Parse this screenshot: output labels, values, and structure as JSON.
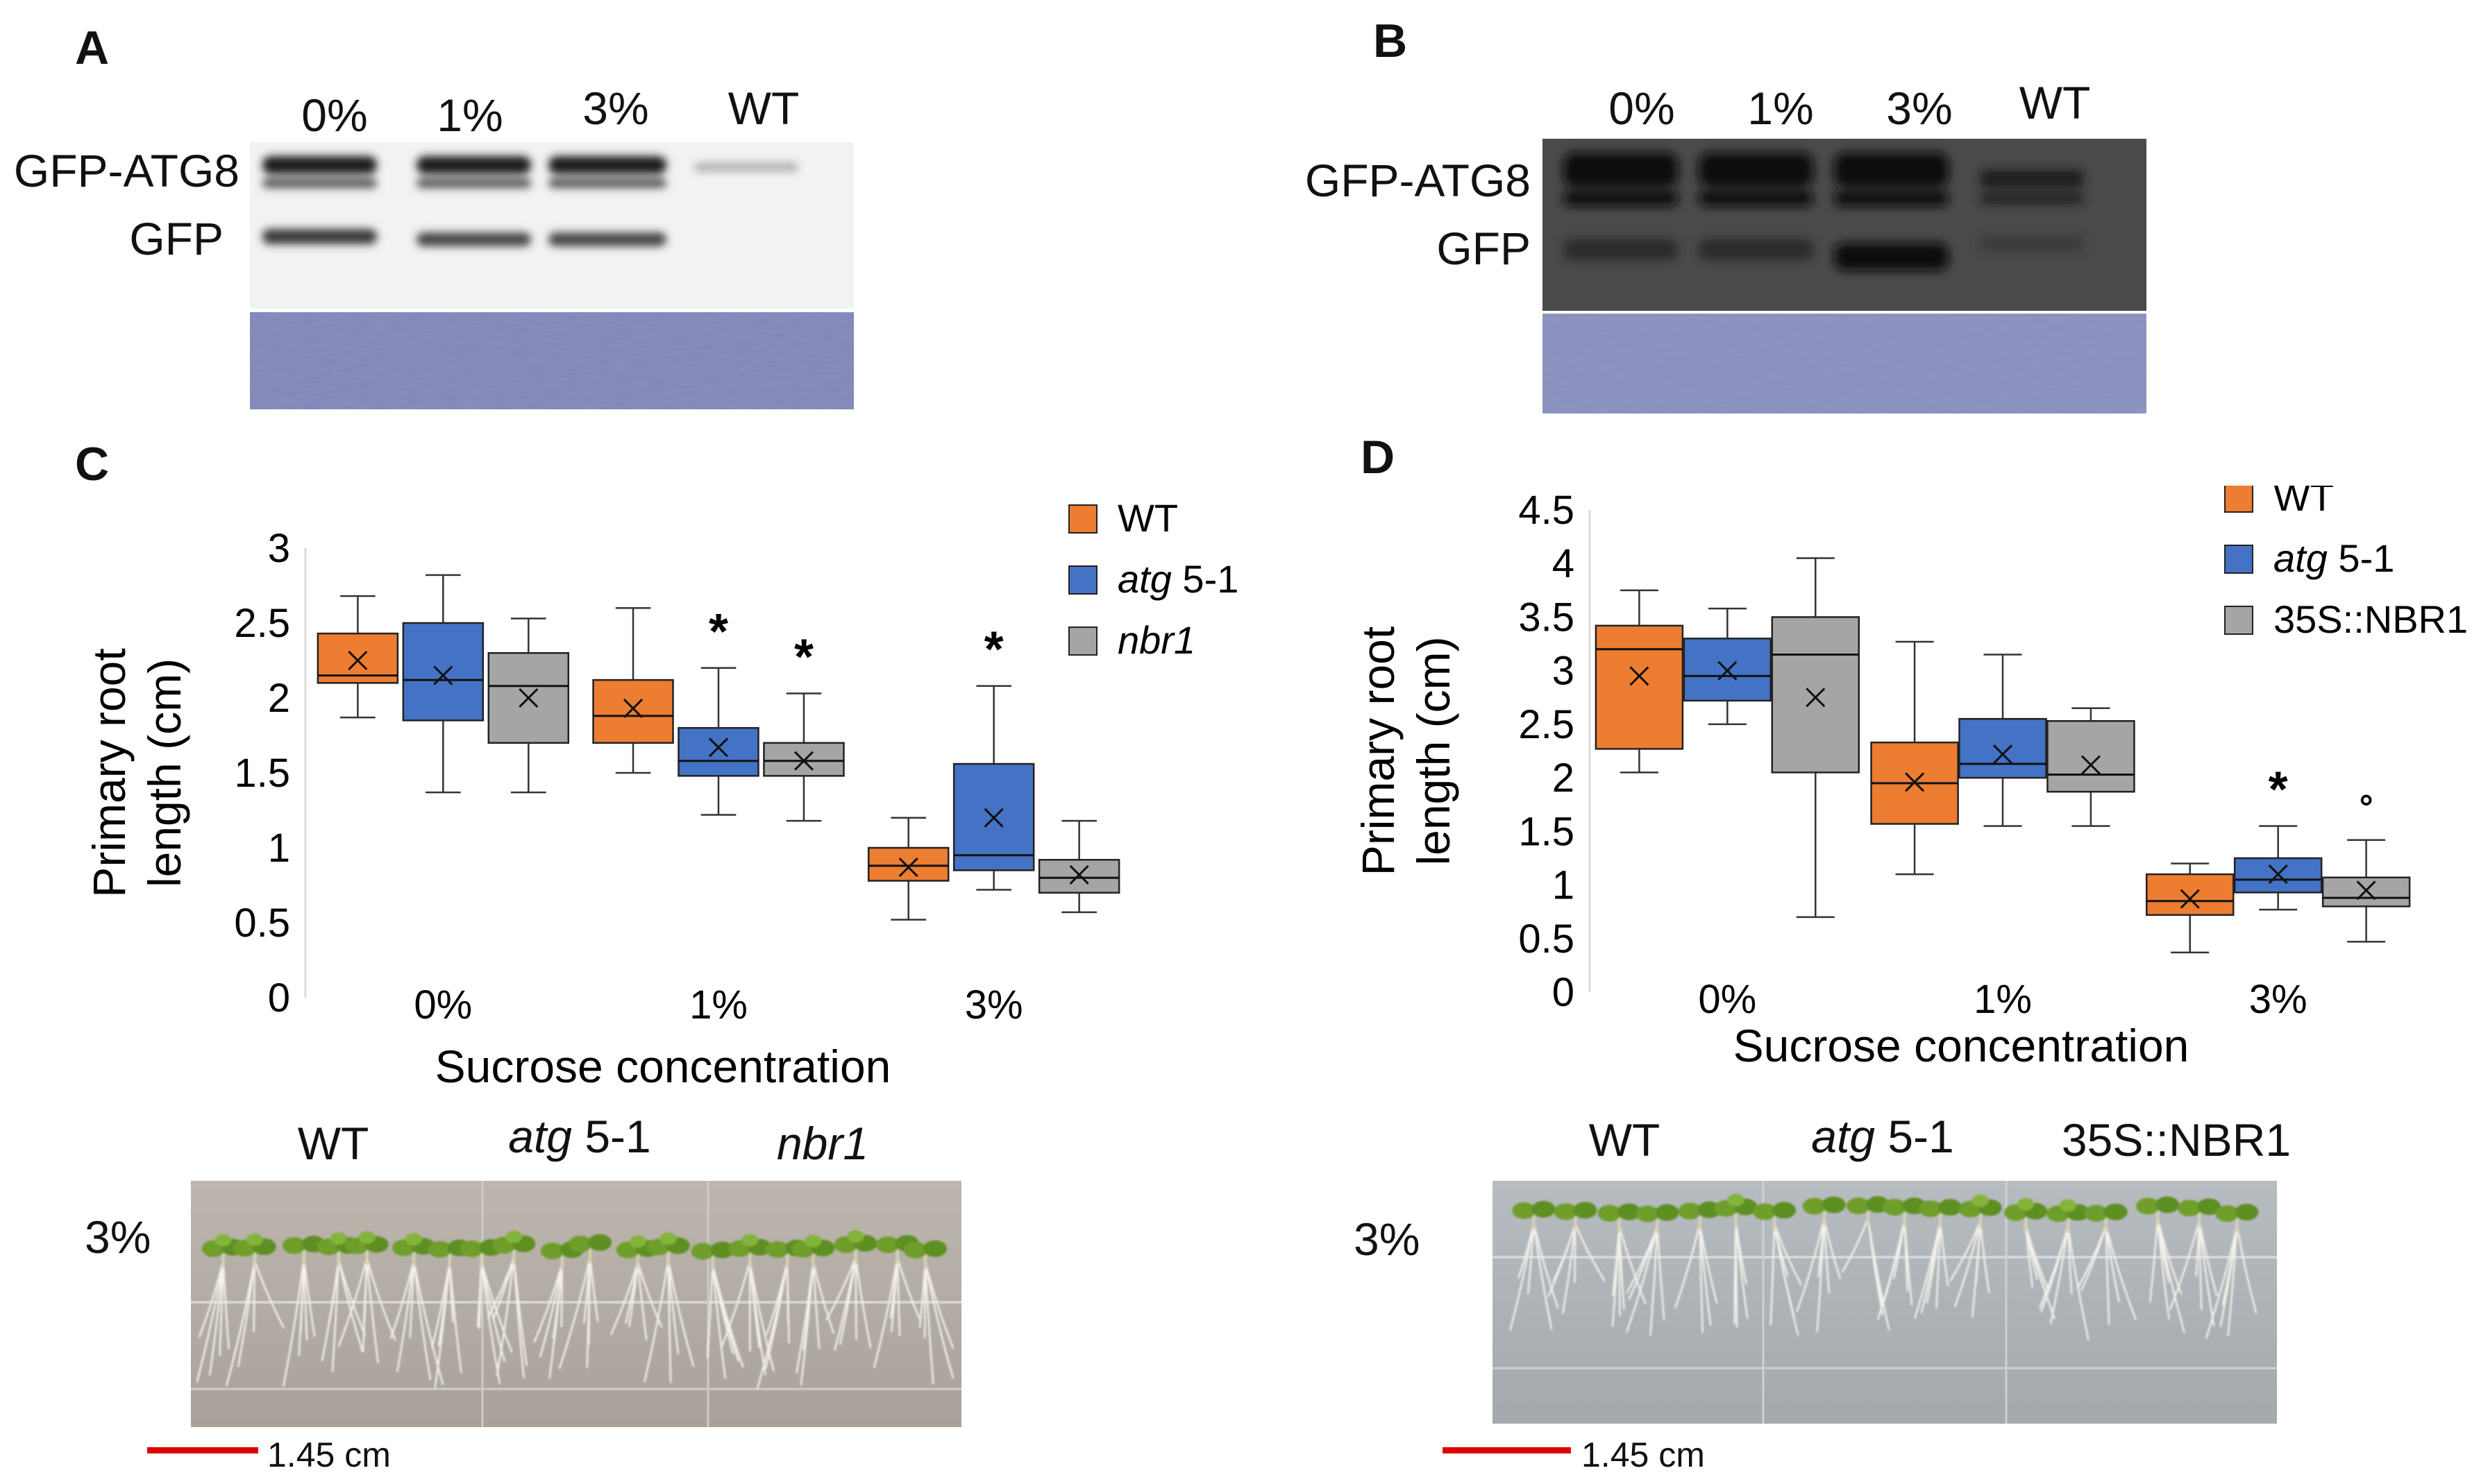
{
  "colors": {
    "wt": "#ED7D31",
    "atg": "#4472C4",
    "gray": "#A5A5A5",
    "coomassie": "#7f86b8",
    "scalebar": "#e00000"
  },
  "panels": {
    "A": {
      "label": "A",
      "lanes": [
        "0%",
        "1%",
        "3%",
        "WT"
      ],
      "band_labels": [
        "GFP-ATG8",
        "GFP"
      ]
    },
    "B": {
      "label": "B",
      "lanes": [
        "0%",
        "1%",
        "3%",
        "WT"
      ],
      "band_labels": [
        "GFP-ATG8",
        "GFP"
      ]
    },
    "C": {
      "label": "C",
      "photo_label": "3%",
      "photo_genotypes": [
        "WT",
        "atg 5-1",
        "nbr1"
      ],
      "scalebar": "1.45 cm"
    },
    "D": {
      "label": "D",
      "photo_label": "3%",
      "photo_genotypes": [
        "WT",
        "atg 5-1",
        "35S::NBR1"
      ],
      "scalebar": "1.45 cm"
    }
  },
  "chart_data": [
    {
      "type": "box",
      "panel": "C",
      "title": "",
      "xlabel": "Sucrose concentration",
      "ylabel": "Primary root length (cm)",
      "ylim": [
        0,
        3
      ],
      "yticks": [
        "0",
        "0.5",
        "1",
        "1.5",
        "2",
        "2.5",
        "3"
      ],
      "categories": [
        "0%",
        "1%",
        "3%"
      ],
      "legend": [
        "WT",
        "atg 5-1",
        "nbr1"
      ],
      "series": [
        {
          "name": "WT",
          "color": "#ED7D31",
          "boxes": [
            {
              "min": 1.87,
              "q1": 2.1,
              "median": 2.15,
              "q3": 2.43,
              "max": 2.68,
              "mean": 2.25,
              "mark": ""
            },
            {
              "min": 1.5,
              "q1": 1.7,
              "median": 1.88,
              "q3": 2.12,
              "max": 2.6,
              "mean": 1.93,
              "mark": ""
            },
            {
              "min": 0.52,
              "q1": 0.78,
              "median": 0.88,
              "q3": 1.0,
              "max": 1.2,
              "mean": 0.87,
              "mark": ""
            }
          ]
        },
        {
          "name": "atg 5-1",
          "color": "#4472C4",
          "boxes": [
            {
              "min": 1.37,
              "q1": 1.85,
              "median": 2.12,
              "q3": 2.5,
              "max": 2.82,
              "mean": 2.15,
              "mark": ""
            },
            {
              "min": 1.22,
              "q1": 1.48,
              "median": 1.58,
              "q3": 1.8,
              "max": 2.2,
              "mean": 1.67,
              "mark": "*"
            },
            {
              "min": 0.72,
              "q1": 0.85,
              "median": 0.95,
              "q3": 1.56,
              "max": 2.08,
              "mean": 1.2,
              "mark": "*"
            }
          ]
        },
        {
          "name": "nbr1",
          "color": "#A5A5A5",
          "boxes": [
            {
              "min": 1.37,
              "q1": 1.7,
              "median": 2.08,
              "q3": 2.3,
              "max": 2.53,
              "mean": 2.0,
              "mark": ""
            },
            {
              "min": 1.18,
              "q1": 1.48,
              "median": 1.58,
              "q3": 1.7,
              "max": 2.03,
              "mean": 1.58,
              "mark": "*"
            },
            {
              "min": 0.57,
              "q1": 0.7,
              "median": 0.8,
              "q3": 0.92,
              "max": 1.18,
              "mean": 0.82,
              "mark": ""
            }
          ]
        }
      ]
    },
    {
      "type": "box",
      "panel": "D",
      "title": "",
      "xlabel": "Sucrose concentration",
      "ylabel": "Primary root length (cm)",
      "ylim": [
        0,
        4.5
      ],
      "yticks": [
        "0",
        "0.5",
        "1",
        "1.5",
        "2",
        "2.5",
        "3",
        "3.5",
        "4",
        "4.5"
      ],
      "categories": [
        "0%",
        "1%",
        "3%"
      ],
      "legend": [
        "WT",
        "atg 5-1",
        "35S::NBR1"
      ],
      "series": [
        {
          "name": "WT",
          "color": "#ED7D31",
          "boxes": [
            {
              "min": 2.05,
              "q1": 2.27,
              "median": 3.2,
              "q3": 3.42,
              "max": 3.75,
              "mean": 2.95,
              "mark": ""
            },
            {
              "min": 1.1,
              "q1": 1.57,
              "median": 1.95,
              "q3": 2.33,
              "max": 3.27,
              "mean": 1.96,
              "mark": ""
            },
            {
              "min": 0.37,
              "q1": 0.72,
              "median": 0.85,
              "q3": 1.1,
              "max": 1.2,
              "mean": 0.87,
              "mark": ""
            }
          ]
        },
        {
          "name": "atg 5-1",
          "color": "#4472C4",
          "boxes": [
            {
              "min": 2.5,
              "q1": 2.72,
              "median": 2.95,
              "q3": 3.3,
              "max": 3.58,
              "mean": 3.0,
              "mark": ""
            },
            {
              "min": 1.55,
              "q1": 2.0,
              "median": 2.13,
              "q3": 2.55,
              "max": 3.15,
              "mean": 2.22,
              "mark": ""
            },
            {
              "min": 0.77,
              "q1": 0.93,
              "median": 1.05,
              "q3": 1.25,
              "max": 1.55,
              "mean": 1.1,
              "mark": "*"
            }
          ]
        },
        {
          "name": "35S::NBR1",
          "color": "#A5A5A5",
          "boxes": [
            {
              "min": 0.7,
              "q1": 2.05,
              "median": 3.15,
              "q3": 3.5,
              "max": 4.05,
              "mean": 2.75,
              "mark": ""
            },
            {
              "min": 1.55,
              "q1": 1.87,
              "median": 2.03,
              "q3": 2.53,
              "max": 2.65,
              "mean": 2.12,
              "mark": ""
            },
            {
              "min": 0.47,
              "q1": 0.8,
              "median": 0.88,
              "q3": 1.07,
              "max": 1.42,
              "mean": 0.95,
              "mark": "°"
            }
          ]
        }
      ]
    }
  ]
}
